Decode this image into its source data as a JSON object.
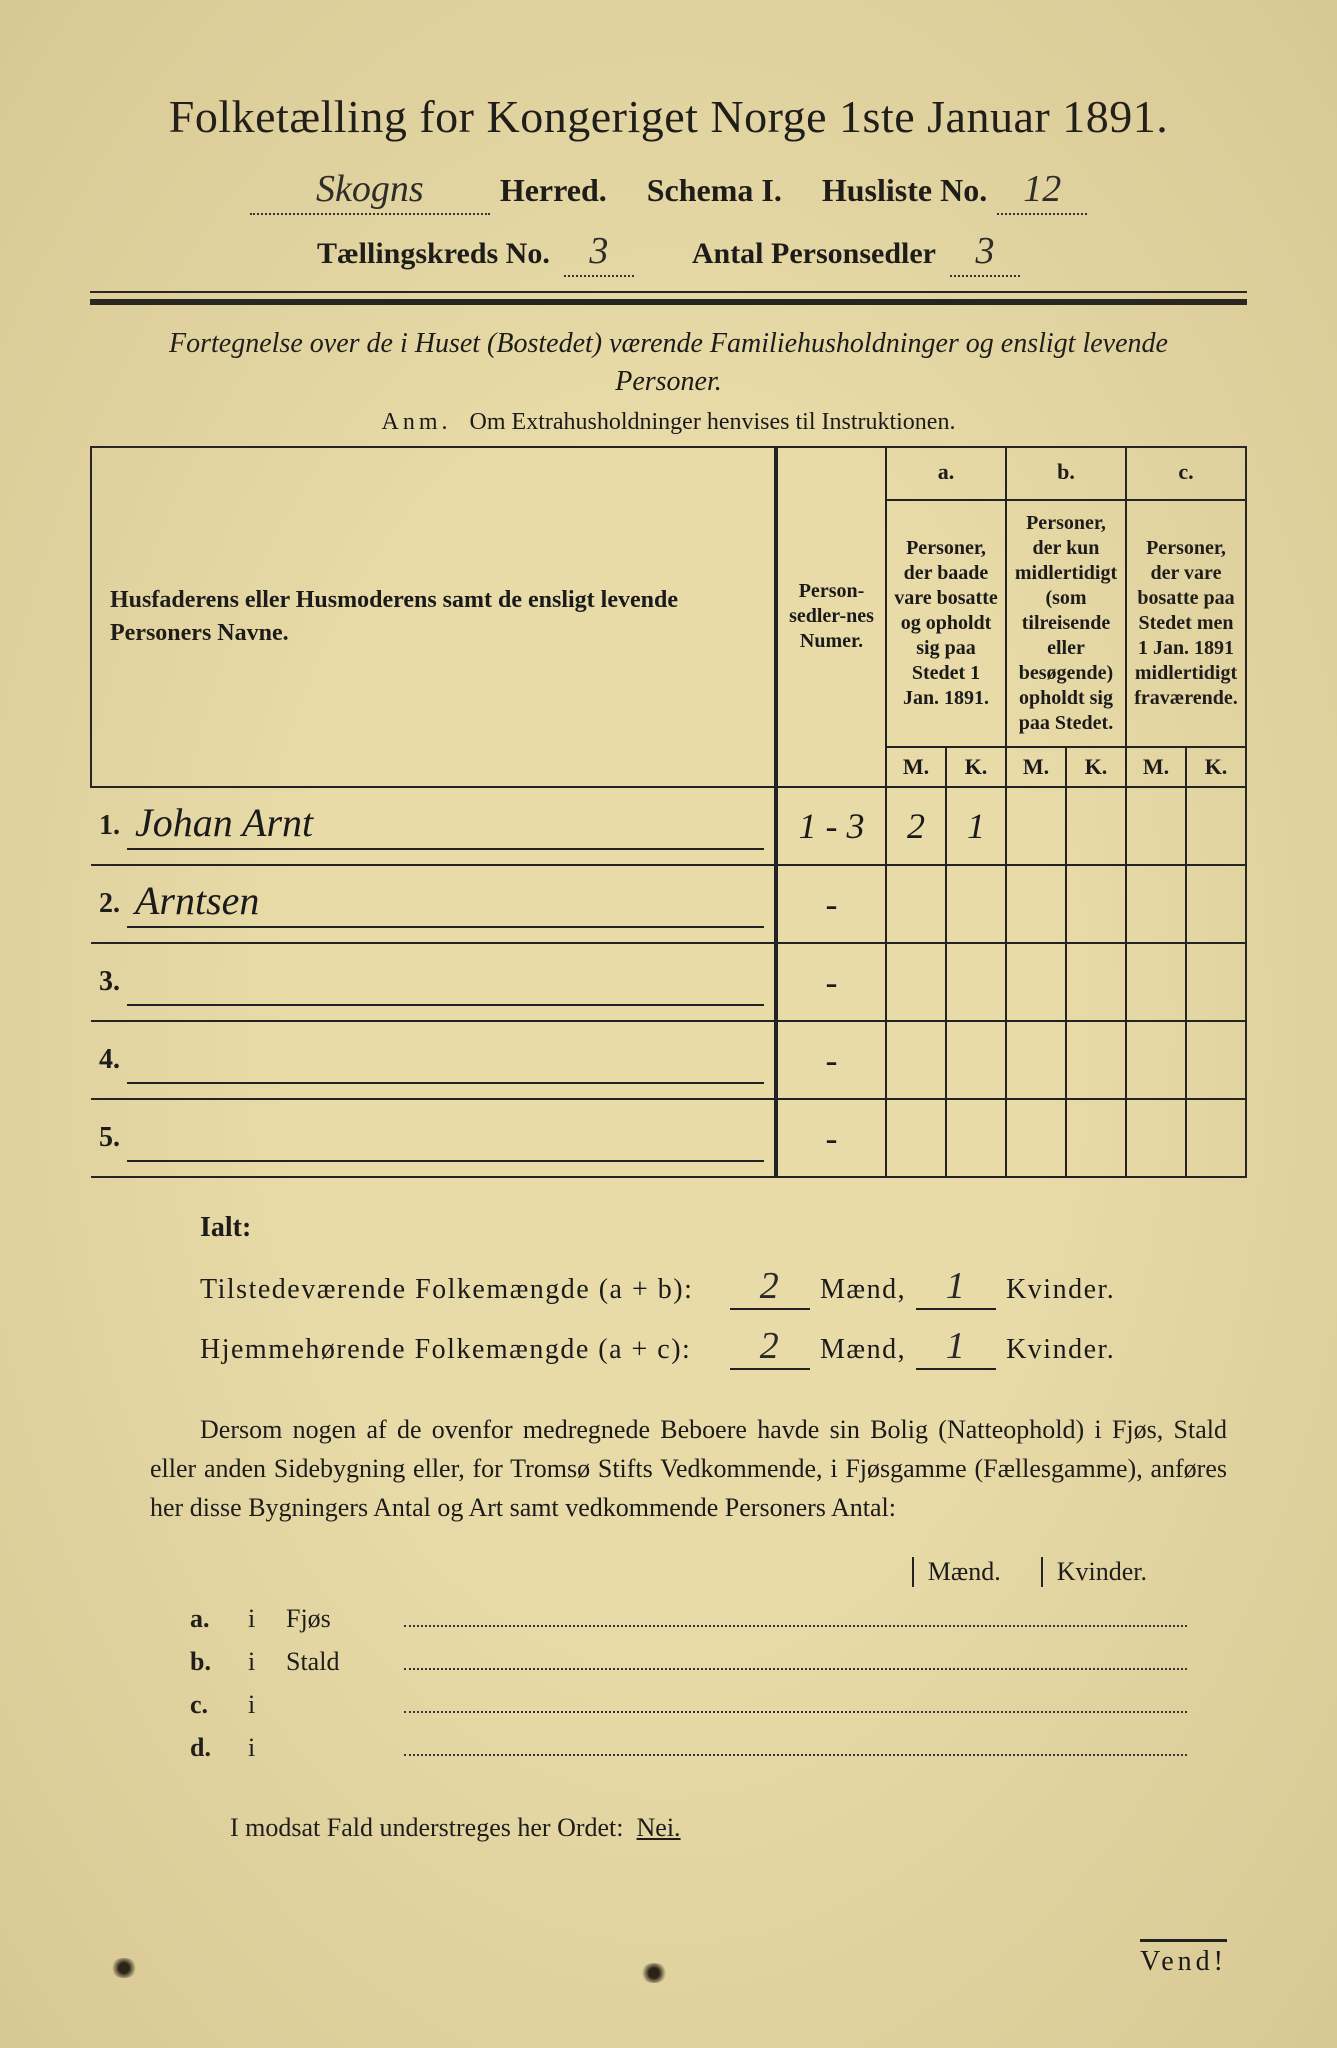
{
  "colors": {
    "paper": "#e8dba8",
    "ink": "#1a1a1a",
    "outer": "#1a1a1a"
  },
  "title": "Folketælling for Kongeriget Norge 1ste Januar 1891.",
  "header": {
    "herred_value": "Skogns",
    "herred_label": "Herred.",
    "schema_label": "Schema I.",
    "husliste_label": "Husliste No.",
    "husliste_value": "12",
    "kreds_label": "Tællingskreds No.",
    "kreds_value": "3",
    "antal_label": "Antal Personsedler",
    "antal_value": "3"
  },
  "intro": "Fortegnelse over de i Huset (Bostedet) værende Familiehusholdninger og ensligt levende Personer.",
  "anm_label": "Anm.",
  "anm_text": "Om Extrahusholdninger henvises til Instruktionen.",
  "table": {
    "col_names": "Husfaderens eller Husmoderens samt de ensligt levende Personers Navne.",
    "col_numer": "Person-sedler-nes Numer.",
    "col_a_label": "a.",
    "col_a": "Personer, der baade vare bosatte og opholdt sig paa Stedet 1 Jan. 1891.",
    "col_b_label": "b.",
    "col_b": "Personer, der kun midlertidigt (som tilreisende eller besøgende) opholdt sig paa Stedet.",
    "col_c_label": "c.",
    "col_c": "Personer, der vare bosatte paa Stedet men 1 Jan. 1891 midlertidigt fraværende.",
    "m": "M.",
    "k": "K.",
    "rows": [
      {
        "n": "1.",
        "name": "Johan Arnt",
        "numer": "1 - 3",
        "a_m": "2",
        "a_k": "1",
        "b_m": "",
        "b_k": "",
        "c_m": "",
        "c_k": ""
      },
      {
        "n": "2.",
        "name": "Arntsen",
        "numer": "-",
        "a_m": "",
        "a_k": "",
        "b_m": "",
        "b_k": "",
        "c_m": "",
        "c_k": ""
      },
      {
        "n": "3.",
        "name": "",
        "numer": "-",
        "a_m": "",
        "a_k": "",
        "b_m": "",
        "b_k": "",
        "c_m": "",
        "c_k": ""
      },
      {
        "n": "4.",
        "name": "",
        "numer": "-",
        "a_m": "",
        "a_k": "",
        "b_m": "",
        "b_k": "",
        "c_m": "",
        "c_k": ""
      },
      {
        "n": "5.",
        "name": "",
        "numer": "-",
        "a_m": "",
        "a_k": "",
        "b_m": "",
        "b_k": "",
        "c_m": "",
        "c_k": ""
      }
    ]
  },
  "totals": {
    "ialt": "Ialt:",
    "present_label": "Tilstedeværende Folkemængde (a + b):",
    "home_label": "Hjemmehørende Folkemængde (a + c):",
    "present_m": "2",
    "present_k": "1",
    "home_m": "2",
    "home_k": "1",
    "maend": "Mænd,",
    "kvinder": "Kvinder."
  },
  "paragraph": "Dersom nogen af de ovenfor medregnede Beboere havde sin Bolig (Natteophold) i Fjøs, Stald eller anden Sidebygning eller, for Tromsø Stifts Vedkommende, i Fjøsgamme (Fællesgamme), anføres her disse Bygningers Antal og Art samt vedkommende Personers Antal:",
  "buildings": {
    "head_m": "Mænd.",
    "head_k": "Kvinder.",
    "rows": [
      {
        "lbl": "a.",
        "i": "i",
        "name": "Fjøs"
      },
      {
        "lbl": "b.",
        "i": "i",
        "name": "Stald"
      },
      {
        "lbl": "c.",
        "i": "i",
        "name": ""
      },
      {
        "lbl": "d.",
        "i": "i",
        "name": ""
      }
    ]
  },
  "footer": "I modsat Fald understreges her Ordet:",
  "nei": "Nei.",
  "vend": "Vend!"
}
